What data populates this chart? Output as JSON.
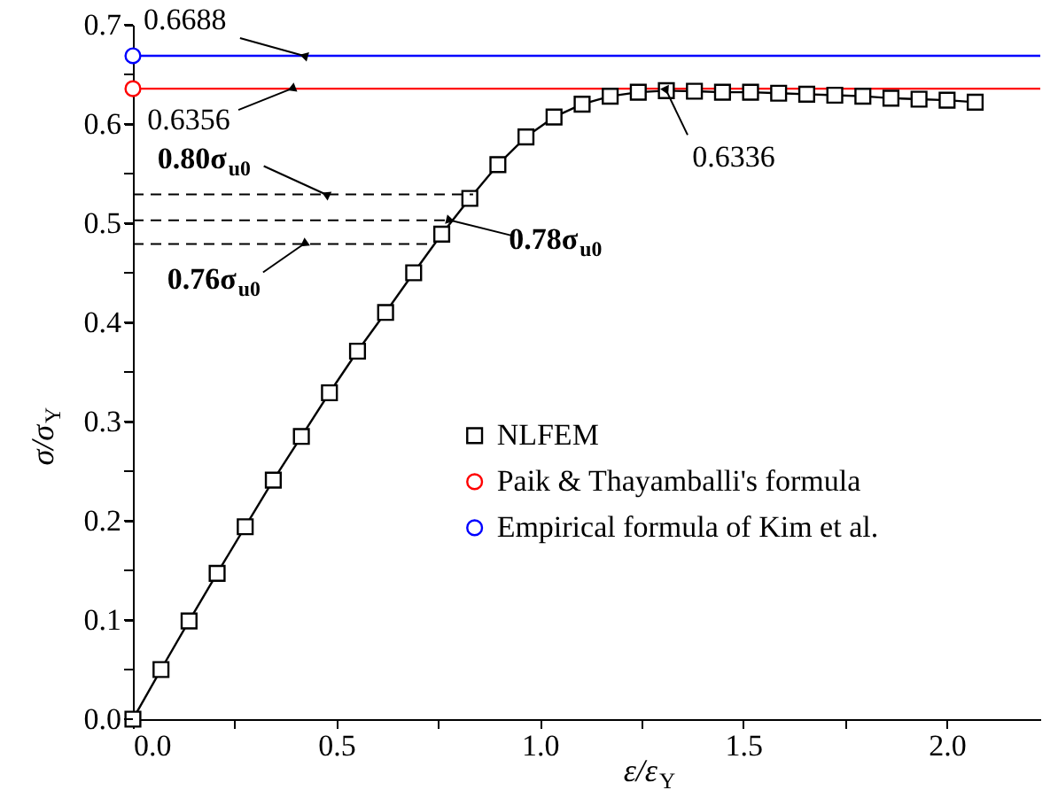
{
  "chart_data": {
    "type": "line",
    "xlabel": "ε/ε$_{Y}$",
    "ylabel": "σ/σ$_{Y}$",
    "xlim": [
      0,
      2.23
    ],
    "ylim": [
      0,
      0.7
    ],
    "xticks": [
      {
        "value": 0,
        "label": "0.0"
      },
      {
        "value": 0.25,
        "label": null
      },
      {
        "value": 0.5,
        "label": "0.5"
      },
      {
        "value": 0.75,
        "label": null
      },
      {
        "value": 1.0,
        "label": "1.0"
      },
      {
        "value": 1.25,
        "label": null
      },
      {
        "value": 1.5,
        "label": "1.5"
      },
      {
        "value": 1.75,
        "label": null
      },
      {
        "value": 2.0,
        "label": "2.0"
      }
    ],
    "yticks": [
      {
        "value": 0,
        "label": "0.0"
      },
      {
        "value": 0.05,
        "label": null
      },
      0.1,
      {
        "value": 0.15,
        "label": null
      },
      0.2,
      {
        "value": 0.25,
        "label": null
      },
      0.3,
      {
        "value": 0.35,
        "label": null
      },
      0.4,
      {
        "value": 0.45,
        "label": null
      },
      0.5,
      {
        "value": 0.55,
        "label": null
      },
      0.6,
      {
        "value": 0.65,
        "label": null
      },
      0.7
    ],
    "grid": false,
    "legend": "right",
    "series": [
      {
        "name": "NLFEM",
        "color": "#000000",
        "marker": "square",
        "x": [
          0,
          0.069,
          0.138,
          0.207,
          0.276,
          0.345,
          0.414,
          0.483,
          0.552,
          0.621,
          0.69,
          0.759,
          0.828,
          0.897,
          0.966,
          1.035,
          1.104,
          1.173,
          1.242,
          1.311,
          1.38,
          1.449,
          1.518,
          1.587,
          1.656,
          1.725,
          1.794,
          1.863,
          1.932,
          2.001,
          2.07
        ],
        "values": [
          0,
          0.05,
          0.099,
          0.147,
          0.194,
          0.241,
          0.285,
          0.329,
          0.371,
          0.41,
          0.45,
          0.489,
          0.525,
          0.559,
          0.587,
          0.607,
          0.62,
          0.628,
          0.632,
          0.6336,
          0.633,
          0.632,
          0.632,
          0.631,
          0.63,
          0.629,
          0.628,
          0.626,
          0.625,
          0.624,
          0.622
        ]
      },
      {
        "name": "Paik & Thayamballi's formula",
        "color": "#ff0000",
        "marker": "circle",
        "x": [
          0,
          2.23
        ],
        "values": [
          0.6356,
          0.6356
        ]
      },
      {
        "name": " Empirical formula of Kim et al.",
        "color": "#0000ff",
        "marker": "circle",
        "x": [
          0,
          2.23
        ],
        "values": [
          0.6688,
          0.6688
        ]
      }
    ],
    "ref_lines": [
      {
        "axis": "y",
        "value": 0.529,
        "color": "#000000",
        "line_style": "dashed"
      },
      {
        "axis": "y",
        "value": 0.503,
        "color": "#000000",
        "line_style": "dashed"
      },
      {
        "axis": "y",
        "value": 0.479,
        "color": "#000000",
        "line_style": "dashed"
      }
    ],
    "annotations": [
      {
        "text": "0.6688",
        "x": 0.42,
        "y": 0.6688
      },
      {
        "text": "0.6356",
        "x": 0.39,
        "y": 0.6356
      },
      {
        "text": "0.6336",
        "x": 1.311,
        "y": 0.6336
      },
      {
        "text": "0.80σ$_{u0}$",
        "x": 0.474,
        "y": 0.529
      },
      {
        "text": "0.78σ$_{u0}$",
        "x": 0.78,
        "y": 0.503
      },
      {
        "text": "0.76σ$_{u0}$",
        "x": 0.42,
        "y": 0.479
      }
    ]
  }
}
